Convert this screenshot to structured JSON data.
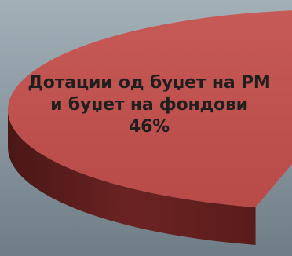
{
  "colors": {
    "background_top": "#a3b0b8",
    "background_bottom": "#6f7d86",
    "slice_top": "#c0504d",
    "slice_side": "#6b2322",
    "slice_side_dark": "#4a1716"
  },
  "chart_data": {
    "type": "pie",
    "style": "3d",
    "slices": [
      {
        "label_lines": [
          "Дотации од буџет на РМ",
          "и буџет на фондови"
        ],
        "value": 46,
        "value_label": "46%",
        "color": "#c0504d"
      }
    ],
    "legend": "none"
  }
}
